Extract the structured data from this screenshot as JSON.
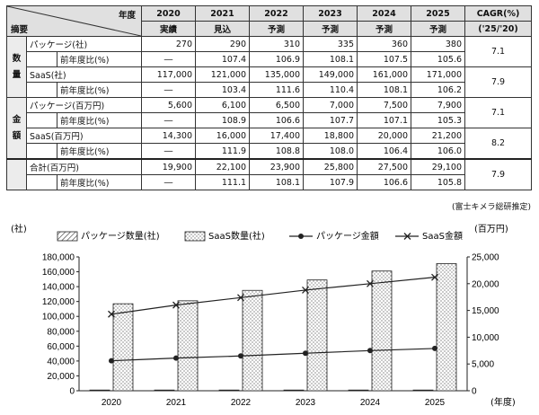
{
  "table": {
    "header_year_label": "年度",
    "header_item_label": "摘要",
    "years": [
      "2020",
      "2021",
      "2022",
      "2023",
      "2024",
      "2025"
    ],
    "status": [
      "実績",
      "見込",
      "予測",
      "予測",
      "予測",
      "予測"
    ],
    "cagr_label": "CAGR(%)",
    "cagr_period": "('25/'20)",
    "groups": [
      {
        "name": "数量",
        "chars": [
          "数",
          "量"
        ]
      },
      {
        "name": "金額",
        "chars": [
          "金",
          "額"
        ]
      }
    ],
    "rows": [
      {
        "label": "パッケージ(社)",
        "values": [
          "270",
          "290",
          "310",
          "335",
          "360",
          "380"
        ],
        "cagr": "7.1"
      },
      {
        "label": "前年度比(%)",
        "values": [
          "―",
          "107.4",
          "106.9",
          "108.1",
          "107.5",
          "105.6"
        ]
      },
      {
        "label": "SaaS(社)",
        "values": [
          "117,000",
          "121,000",
          "135,000",
          "149,000",
          "161,000",
          "171,000"
        ],
        "cagr": "7.9"
      },
      {
        "label": "前年度比(%)",
        "values": [
          "―",
          "103.4",
          "111.6",
          "110.4",
          "108.1",
          "106.2"
        ]
      },
      {
        "label": "パッケージ(百万円)",
        "values": [
          "5,600",
          "6,100",
          "6,500",
          "7,000",
          "7,500",
          "7,900"
        ],
        "cagr": "7.1"
      },
      {
        "label": "前年度比(%)",
        "values": [
          "―",
          "108.9",
          "106.6",
          "107.7",
          "107.1",
          "105.3"
        ]
      },
      {
        "label": "SaaS(百万円)",
        "values": [
          "14,300",
          "16,000",
          "17,400",
          "18,800",
          "20,000",
          "21,200"
        ],
        "cagr": "8.2"
      },
      {
        "label": "前年度比(%)",
        "values": [
          "―",
          "111.9",
          "108.8",
          "108.0",
          "106.4",
          "106.0"
        ]
      },
      {
        "label": "合計(百万円)",
        "values": [
          "19,900",
          "22,100",
          "23,900",
          "25,800",
          "27,500",
          "29,100"
        ],
        "cagr": "7.9"
      },
      {
        "label": "前年度比(%)",
        "values": [
          "―",
          "111.1",
          "108.1",
          "107.9",
          "106.6",
          "105.8"
        ]
      }
    ],
    "source": "(富士キメラ総研推定)"
  },
  "chart_data": {
    "type": "bar",
    "categories": [
      "2020",
      "2021",
      "2022",
      "2023",
      "2024",
      "2025"
    ],
    "xlabel": "(年度)",
    "ylabel_left": "(社)",
    "ylabel_right": "(百万円)",
    "ylim_left": [
      0,
      180000
    ],
    "yticks_left": [
      0,
      20000,
      40000,
      60000,
      80000,
      100000,
      120000,
      140000,
      160000,
      180000
    ],
    "ylim_right": [
      0,
      25000
    ],
    "yticks_right": [
      0,
      5000,
      10000,
      15000,
      20000,
      25000
    ],
    "legend_position": "top",
    "grid": false,
    "series": [
      {
        "name": "パッケージ数量(社)",
        "kind": "bar",
        "axis": "left",
        "values": [
          270,
          290,
          310,
          335,
          360,
          380
        ],
        "pattern": "hatch"
      },
      {
        "name": "SaaS数量(社)",
        "kind": "bar",
        "axis": "left",
        "values": [
          117000,
          121000,
          135000,
          149000,
          161000,
          171000
        ],
        "pattern": "dots"
      },
      {
        "name": "パッケージ金額",
        "kind": "line",
        "axis": "right",
        "marker": "circle",
        "values": [
          5600,
          6100,
          6500,
          7000,
          7500,
          7900
        ]
      },
      {
        "name": "SaaS金額",
        "kind": "line",
        "axis": "right",
        "marker": "x",
        "values": [
          14300,
          16000,
          17400,
          18800,
          20000,
          21200
        ]
      }
    ]
  }
}
